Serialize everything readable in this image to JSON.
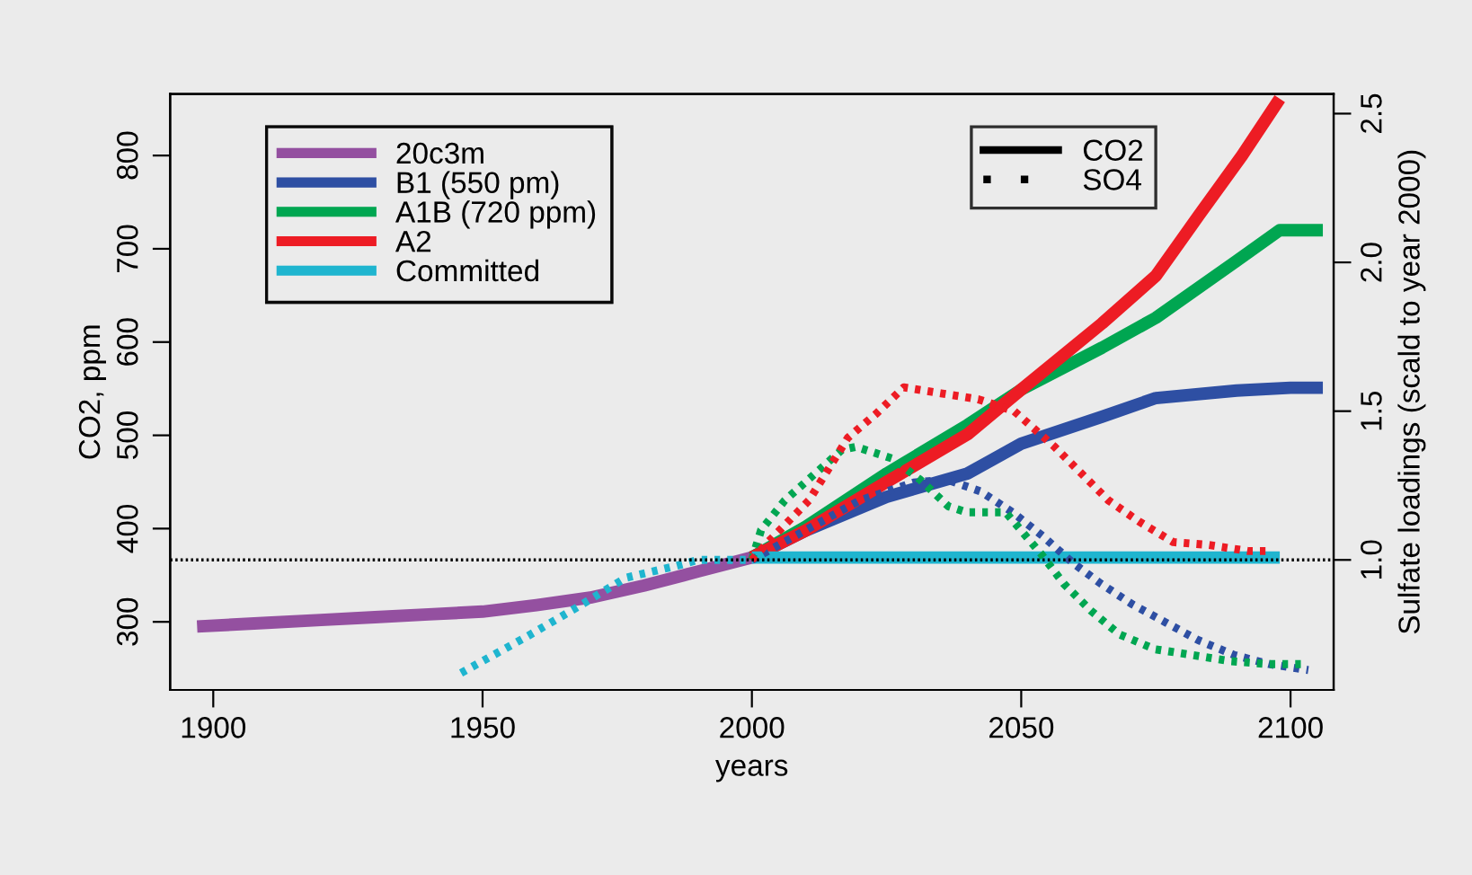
{
  "chart_data": {
    "type": "line",
    "xlabel": "years",
    "ylabel": "CO2, ppm",
    "y2label": "Sulfate loadings (scald to year 2000)",
    "xlim": [
      1892,
      2108
    ],
    "xticks": [
      1900,
      1950,
      2000,
      2050,
      2100
    ],
    "ylim": [
      227,
      866
    ],
    "yticks": [
      300,
      400,
      500,
      600,
      700,
      800
    ],
    "y2lim": [
      0.563,
      2.566
    ],
    "y2ticks": [
      {
        "value": 1,
        "label": "1.0"
      },
      1.5,
      {
        "value": 2,
        "label": "2.0"
      },
      2.5
    ],
    "grid": false,
    "legend": "top left",
    "marker": "none",
    "annotations": [
      "CO2",
      "SO4"
    ],
    "ref_lines": [
      {
        "axis": "y2",
        "value": 1.0,
        "color": "#000000",
        "line_style": "dotted"
      }
    ],
    "series": [
      {
        "name": "20c3m",
        "color": "#9450a0",
        "line_style": "solid",
        "x": [
          1897,
          1910,
          1920,
          1930,
          1940,
          1950,
          1960,
          1970,
          1980,
          1990,
          2000
        ],
        "values": [
          295,
          299,
          302,
          305,
          308,
          311,
          318,
          326,
          339,
          354,
          369
        ]
      },
      {
        "name": "B1 (550 pm)",
        "color": "#2e4fa3",
        "line_style": "solid",
        "x": [
          2000,
          2010,
          2025,
          2040,
          2050,
          2065,
          2075,
          2090,
          2100,
          2106
        ],
        "values": [
          369,
          398,
          434,
          459,
          491,
          520,
          540,
          548,
          551,
          551
        ]
      },
      {
        "name": "A1B (720 ppm)",
        "color": "#00a651",
        "line_style": "solid",
        "x": [
          2000,
          2010,
          2025,
          2040,
          2050,
          2065,
          2075,
          2090,
          2098,
          2106
        ],
        "values": [
          369,
          402,
          459,
          511,
          549,
          594,
          626,
          687,
          720,
          720
        ]
      },
      {
        "name": "A2",
        "color": "#ed1c24",
        "line_style": "solid",
        "x": [
          2000,
          2010,
          2025,
          2040,
          2050,
          2065,
          2075,
          2083,
          2091,
          2098
        ],
        "values": [
          369,
          398,
          450,
          501,
          549,
          620,
          671,
          736,
          800,
          861
        ]
      },
      {
        "name": "Committed",
        "color": "#1fb5cf",
        "line_style": "solid",
        "x": [
          2000,
          2098
        ],
        "values": [
          369,
          369
        ]
      },
      {
        "color": "#1fb5cf",
        "line_style": "dotted",
        "axis": "y2",
        "x": [
          1946,
          1958,
          1967.5,
          1976.6,
          1986,
          1990,
          2000
        ],
        "values": [
          0.62,
          0.74,
          0.84,
          0.94,
          0.98,
          1.0,
          1.0
        ]
      },
      {
        "color": "#2e4fa3",
        "line_style": "dotted",
        "axis": "y2",
        "x": [
          2000,
          2010,
          2020,
          2030,
          2036.2,
          2042.5,
          2048.4,
          2054,
          2059.6,
          2064.8,
          2070.7,
          2076.8,
          2082.9,
          2089.6,
          2096,
          2103.3
        ],
        "values": [
          1.0,
          1.1,
          1.2,
          1.26,
          1.27,
          1.23,
          1.16,
          1.08,
          0.99,
          0.92,
          0.85,
          0.79,
          0.73,
          0.68,
          0.65,
          0.63
        ]
      },
      {
        "color": "#00a651",
        "line_style": "dotted",
        "axis": "y2",
        "x": [
          2000,
          2001.7,
          2006.1,
          2011.1,
          2016.7,
          2019.3,
          2022.8,
          2026.2,
          2031.2,
          2036.5,
          2039.9,
          2047.1,
          2049,
          2053.7,
          2057.9,
          2062.9,
          2068.2,
          2074.8,
          2081.8,
          2088.7,
          2095.7,
          2103
        ],
        "values": [
          1.0,
          1.1,
          1.2,
          1.28,
          1.37,
          1.38,
          1.36,
          1.34,
          1.27,
          1.18,
          1.16,
          1.16,
          1.12,
          1.02,
          0.92,
          0.83,
          0.75,
          0.7,
          0.68,
          0.66,
          0.65,
          0.65
        ]
      },
      {
        "color": "#ed1c24",
        "line_style": "dotted",
        "axis": "y2",
        "x": [
          2000,
          2003,
          2010.6,
          2017.8,
          2023,
          2028.2,
          2035.1,
          2042,
          2048.7,
          2051.2,
          2056.2,
          2061.2,
          2066.2,
          2071.8,
          2078.2,
          2084.9,
          2092.1,
          2095.7
        ],
        "values": [
          1.0,
          1.06,
          1.2,
          1.41,
          1.49,
          1.58,
          1.56,
          1.54,
          1.5,
          1.46,
          1.38,
          1.29,
          1.2,
          1.13,
          1.06,
          1.05,
          1.03,
          1.03
        ]
      }
    ]
  }
}
